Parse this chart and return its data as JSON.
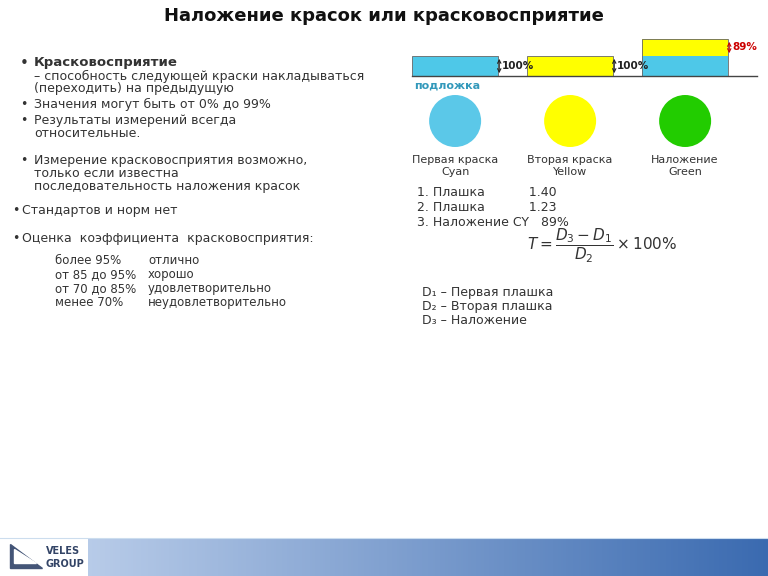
{
  "title": "Наложение красок или красковосприятие",
  "title_fontsize": 13,
  "bg_color": "#ffffff",
  "cyan_color": "#4EC8E8",
  "yellow_color": "#FFFF00",
  "green_color": "#22CC00",
  "accent_color": "#3399BB",
  "text_color": "#333333",
  "circles": [
    {
      "color": "#5BC8E8",
      "label1": "Первая краска",
      "label2": "Cyan"
    },
    {
      "color": "#FFFF00",
      "label1": "Вторая краска",
      "label2": "Yellow"
    },
    {
      "color": "#22CC00",
      "label1": "Наложение",
      "label2": "Green"
    }
  ],
  "ratings": [
    {
      "pct": "более 95%",
      "label": "отлично"
    },
    {
      "pct": "от 85 до 95%",
      "label": "хорошо"
    },
    {
      "pct": "от 70 до 85%",
      "label": "удовлетворительно"
    },
    {
      "pct": "менее 70%",
      "label": "неудовлетворительно"
    }
  ],
  "d_labels": [
    "D₁ – Первая плашка",
    "D₂ – Вторая плашка",
    "D₃ – Наложение"
  ]
}
